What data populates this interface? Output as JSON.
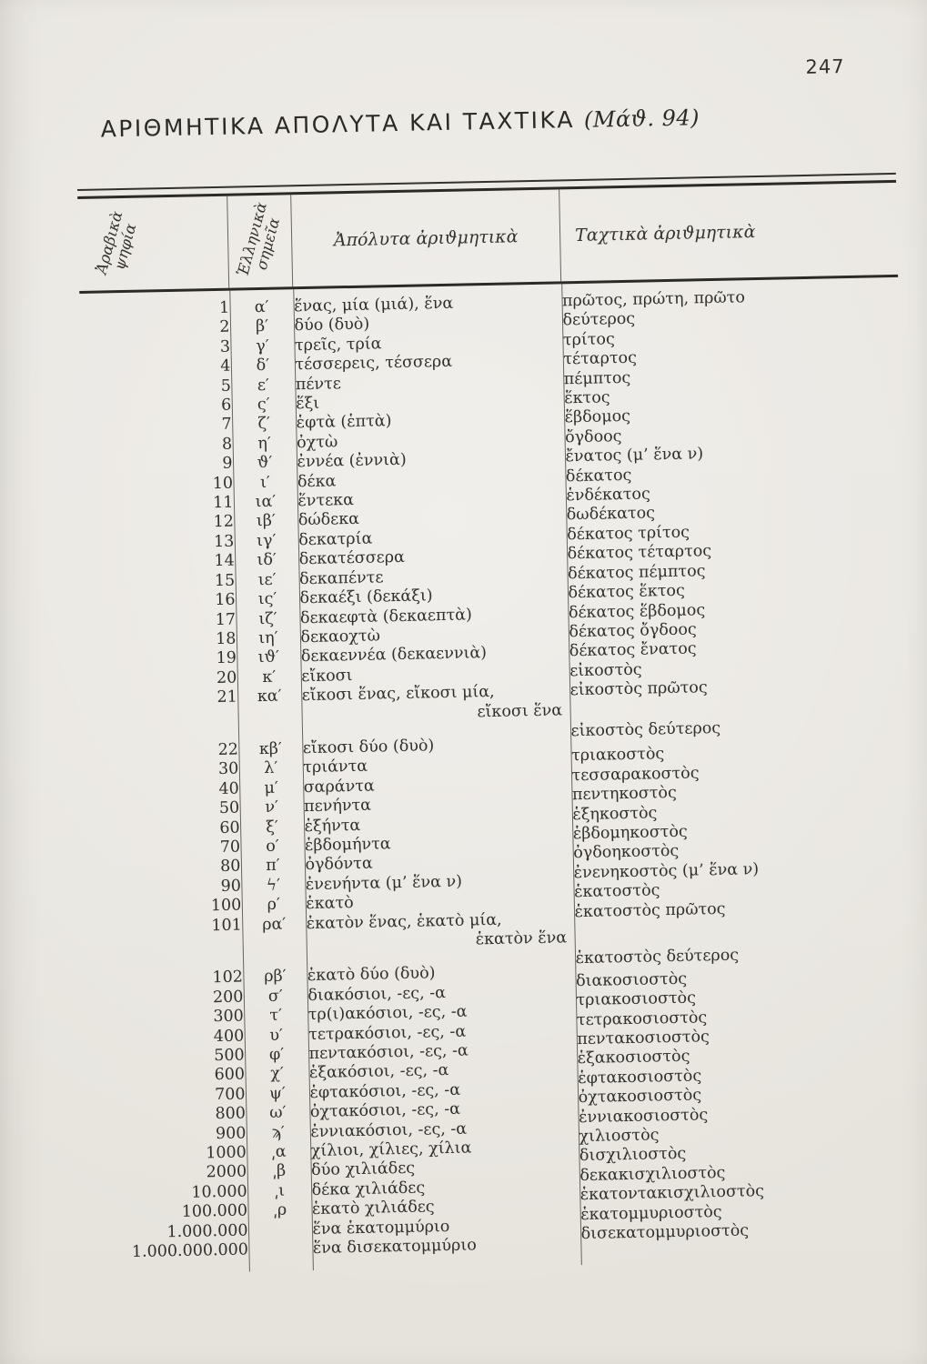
{
  "page": {
    "number": "247"
  },
  "title": {
    "main": "ΑΡΙΘΜΗΤΙΚΑ ΑΠΟΛΥΤΑ ΚΑΙ ΤΑΧΤΙΚΑ",
    "lesson": "(Μάϑ. 94)"
  },
  "table": {
    "headers": {
      "arabic": "Ἀραβικὰ ψηφία",
      "greek": "Ἑλληνικὰ σημεῖα",
      "cardinal": "Ἀπόλυτα ἀριϑμητικὰ",
      "ordinal": "Ταχτικὰ ἀριϑμητικὰ"
    },
    "rows": [
      {
        "arabic": "1",
        "greek": "α′",
        "cardinal": "ἕνας, μία (μιά), ἕνα",
        "ordinal": "πρῶτος, πρώτη, πρῶτο"
      },
      {
        "arabic": "2",
        "greek": "β′",
        "cardinal": "δύο (δυὸ)",
        "ordinal": "δεύτερος"
      },
      {
        "arabic": "3",
        "greek": "γ′",
        "cardinal": "τρεῖς, τρία",
        "ordinal": "τρίτος"
      },
      {
        "arabic": "4",
        "greek": "δ′",
        "cardinal": "τέσσερεις, τέσσερα",
        "ordinal": "τέταρτος"
      },
      {
        "arabic": "5",
        "greek": "ε′",
        "cardinal": "πέντε",
        "ordinal": "πέμπτος"
      },
      {
        "arabic": "6",
        "greek": "ς′",
        "cardinal": "ἕξι",
        "ordinal": "ἕκτος"
      },
      {
        "arabic": "7",
        "greek": "ζ′",
        "cardinal": "ἑφτὰ (ἑπτὰ)",
        "ordinal": "ἕβδομος"
      },
      {
        "arabic": "8",
        "greek": "η′",
        "cardinal": "ὀχτὼ",
        "ordinal": "ὄγδοος"
      },
      {
        "arabic": "9",
        "greek": "ϑ′",
        "cardinal": "ἐννέα (ἐννιὰ)",
        "ordinal": "ἔνατος (μ’ ἕνα ν)"
      },
      {
        "arabic": "10",
        "greek": "ι′",
        "cardinal": "δέκα",
        "ordinal": "δέκατος"
      },
      {
        "arabic": "11",
        "greek": "ια′",
        "cardinal": "ἕντεκα",
        "ordinal": "ἑνδέκατος"
      },
      {
        "arabic": "12",
        "greek": "ιβ′",
        "cardinal": "δώδεκα",
        "ordinal": "δωδέκατος"
      },
      {
        "arabic": "13",
        "greek": "ιγ′",
        "cardinal": "δεκατρία",
        "ordinal": "δέκατος τρίτος"
      },
      {
        "arabic": "14",
        "greek": "ιδ′",
        "cardinal": "δεκατέσσερα",
        "ordinal": "δέκατος τέταρτος"
      },
      {
        "arabic": "15",
        "greek": "ιε′",
        "cardinal": "δεκαπέντε",
        "ordinal": "δέκατος πέμπτος"
      },
      {
        "arabic": "16",
        "greek": "ις′",
        "cardinal": "δεκαέξι (δεκάξι)",
        "ordinal": "δέκατος ἕκτος"
      },
      {
        "arabic": "17",
        "greek": "ιζ′",
        "cardinal": "δεκαεφτὰ (δεκαεπτὰ)",
        "ordinal": "δέκατος ἕβδομος"
      },
      {
        "arabic": "18",
        "greek": "ιη′",
        "cardinal": "δεκαοχτὼ",
        "ordinal": "δέκατος ὄγδοος"
      },
      {
        "arabic": "19",
        "greek": "ιϑ′",
        "cardinal": "δεκαεννέα (δεκαεννιὰ)",
        "ordinal": "δέκατος ἔνατος"
      },
      {
        "arabic": "20",
        "greek": "κ′",
        "cardinal": "εἴκοσι",
        "ordinal": "εἰκοστὸς"
      },
      {
        "arabic": "21",
        "greek": "κα′",
        "cardinal": "εἴκοσι ἕνας, εἴκοσι μία,",
        "cardinal2": "εἴκοσι ἕνα",
        "ordinal": "εἰκοστὸς πρῶτος"
      },
      {
        "arabic": "22",
        "greek": "κβ′",
        "cardinal": "εἴκοσι δύο (δυὸ)",
        "ordinal": "εἰκοστὸς δεύτερος",
        "gap_before": true
      },
      {
        "arabic": "30",
        "greek": "λ′",
        "cardinal": "τριάντα",
        "ordinal": "τριακοστὸς"
      },
      {
        "arabic": "40",
        "greek": "μ′",
        "cardinal": "σαράντα",
        "ordinal": "τεσσαρακοστὸς"
      },
      {
        "arabic": "50",
        "greek": "ν′",
        "cardinal": "πενήντα",
        "ordinal": "πεντηκοστὸς"
      },
      {
        "arabic": "60",
        "greek": "ξ′",
        "cardinal": "ἑξήντα",
        "ordinal": "ἑξηκοστὸς"
      },
      {
        "arabic": "70",
        "greek": "ο′",
        "cardinal": "ἑβδομήντα",
        "ordinal": "ἑβδομηκοστὸς"
      },
      {
        "arabic": "80",
        "greek": "π′",
        "cardinal": "ὀγδόντα",
        "ordinal": "ὀγδοηκοστὸς"
      },
      {
        "arabic": "90",
        "greek": "ϟ′",
        "cardinal": "ἐνενήντα (μ’ ἕνα ν)",
        "ordinal": "ἐνενηκοστὸς (μ’ ἕνα ν)"
      },
      {
        "arabic": "100",
        "greek": "ρ′",
        "cardinal": "ἑκατὸ",
        "ordinal": "ἑκατοστὸς"
      },
      {
        "arabic": "101",
        "greek": "ρα′",
        "cardinal": "ἑκατὸν ἕνας, ἑκατὸ μία,",
        "cardinal2": "ἑκατὸν ἕνα",
        "ordinal": "ἑκατοστὸς πρῶτος"
      },
      {
        "arabic": "102",
        "greek": "ρβ′",
        "cardinal": "ἑκατὸ δύο (δυὸ)",
        "ordinal": "ἑκατοστὸς δεύτερος",
        "gap_before": true
      },
      {
        "arabic": "200",
        "greek": "σ′",
        "cardinal": "διακόσιοι, -ες, -α",
        "ordinal": "διακοσιοστὸς"
      },
      {
        "arabic": "300",
        "greek": "τ′",
        "cardinal": "τρ(ι)ακόσιοι, -ες, -α",
        "ordinal": "τριακοσιοστὸς"
      },
      {
        "arabic": "400",
        "greek": "υ′",
        "cardinal": "τετρακόσιοι, -ες, -α",
        "ordinal": "τετρακοσιοστὸς"
      },
      {
        "arabic": "500",
        "greek": "φ′",
        "cardinal": "πεντακόσιοι, -ες, -α",
        "ordinal": "πεντακοσιοστὸς"
      },
      {
        "arabic": "600",
        "greek": "χ′",
        "cardinal": "ἑξακόσιοι, -ες, -α",
        "ordinal": "ἑξακοσιοστὸς"
      },
      {
        "arabic": "700",
        "greek": "ψ′",
        "cardinal": "ἑφτακόσιοι, -ες, -α",
        "ordinal": "ἑφτακοσιοστὸς"
      },
      {
        "arabic": "800",
        "greek": "ω′",
        "cardinal": "ὀχτακόσιοι, -ες, -α",
        "ordinal": "ὀχτακοσιοστὸς"
      },
      {
        "arabic": "900",
        "greek": "ϡ′",
        "cardinal": "ἐννιακόσιοι, -ες, -α",
        "ordinal": "ἐννιακοσιοστὸς"
      },
      {
        "arabic": "1000",
        "greek": "͵α",
        "cardinal": "χίλιοι, χίλιες, χίλια",
        "ordinal": "χιλιοστὸς"
      },
      {
        "arabic": "2000",
        "greek": "͵β",
        "cardinal": "δύο χιλιάδες",
        "ordinal": "δισχιλιοστὸς"
      },
      {
        "arabic": "10.000",
        "greek": "͵ι",
        "cardinal": "δέκα χιλιάδες",
        "ordinal": "δεκακισχιλιοστὸς"
      },
      {
        "arabic": "100.000",
        "greek": "͵ρ",
        "cardinal": "ἑκατὸ χιλιάδες",
        "ordinal": "ἑκατοντακισχιλιοστὸς"
      },
      {
        "arabic": "1.000.000",
        "greek": "",
        "cardinal": "ἕνα ἑκατομμύριο",
        "ordinal": "ἑκατομμυριοστὸς"
      },
      {
        "arabic": "1.000.000.000",
        "greek": "",
        "cardinal": "ἕνα δισεκατομμύριο",
        "ordinal": "δισεκατομμυριοστὸς"
      }
    ]
  }
}
